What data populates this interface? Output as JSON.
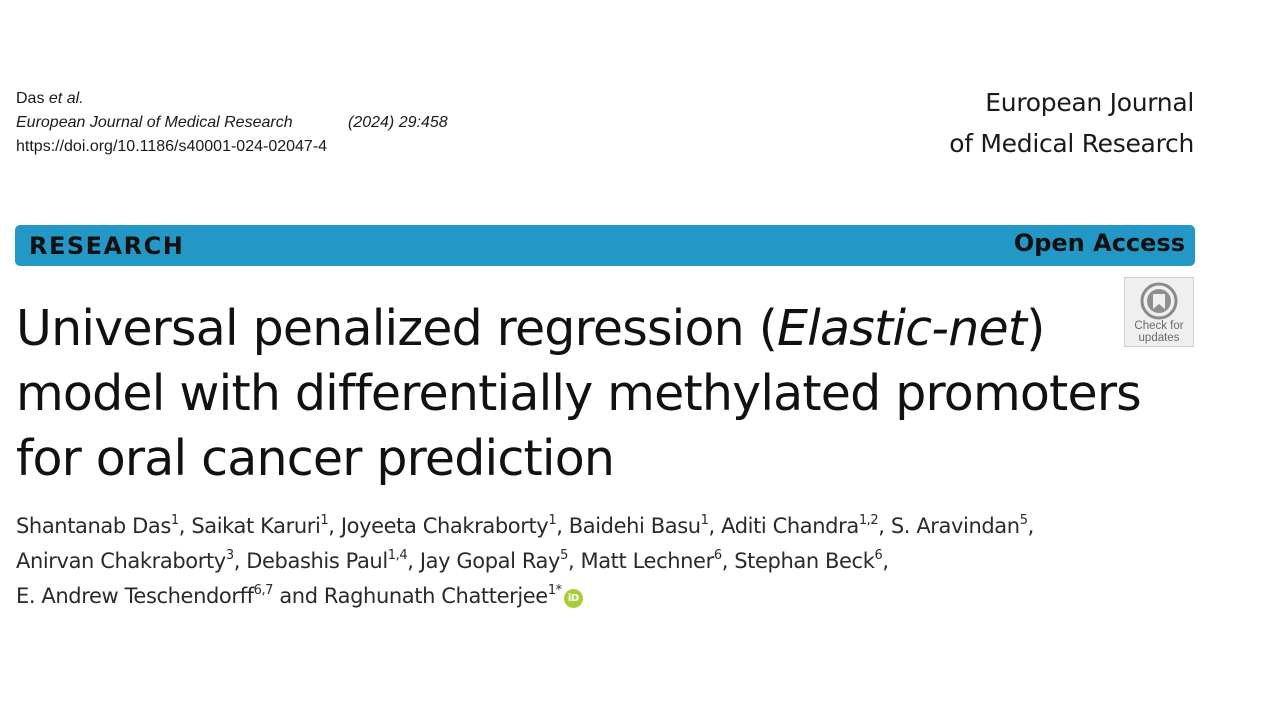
{
  "citation": {
    "author_lead": "Das",
    "author_etal": "et al.",
    "journal": "European Journal of Medical Research",
    "volume": "(2024) 29:458",
    "doi": "https://doi.org/10.1186/s40001-024-02047-4"
  },
  "journal_brand": {
    "line1": "European Journal",
    "line2": "of Medical Research"
  },
  "banner": {
    "section": "RESEARCH",
    "access": "Open Access",
    "color": "#2398c6"
  },
  "check_updates": {
    "line1": "Check for",
    "line2": "updates",
    "icon": "check-for-updates-icon"
  },
  "title": {
    "part1": "Universal penalized regression (",
    "italic": "Elastic-net",
    "part2": ")",
    "line2": "model with differentially methylated promoters",
    "line3": "for oral cancer prediction"
  },
  "authors": [
    {
      "name": "Shantanab Das",
      "aff": "1",
      "sep": ", "
    },
    {
      "name": "Saikat Karuri",
      "aff": "1",
      "sep": ", "
    },
    {
      "name": "Joyeeta Chakraborty",
      "aff": "1",
      "sep": ", "
    },
    {
      "name": "Baidehi Basu",
      "aff": "1",
      "sep": ", "
    },
    {
      "name": "Aditi Chandra",
      "aff": "1,2",
      "sep": ", "
    },
    {
      "name": "S. Aravindan",
      "aff": "5",
      "sep": ","
    },
    {
      "name": "Anirvan Chakraborty",
      "aff": "3",
      "sep": ", "
    },
    {
      "name": "Debashis Paul",
      "aff": "1,4",
      "sep": ", "
    },
    {
      "name": "Jay Gopal Ray",
      "aff": "5",
      "sep": ", "
    },
    {
      "name": "Matt Lechner",
      "aff": "6",
      "sep": ", "
    },
    {
      "name": "Stephan Beck",
      "aff": "6",
      "sep": ","
    },
    {
      "name": "E. Andrew Teschendorff",
      "aff": "6,7",
      "sep": " and "
    },
    {
      "name": "Raghunath Chatterjee",
      "aff": "1*",
      "sep": ""
    }
  ],
  "orcid": {
    "icon": "orcid-icon",
    "text": "iD",
    "color": "#a6ce39"
  }
}
